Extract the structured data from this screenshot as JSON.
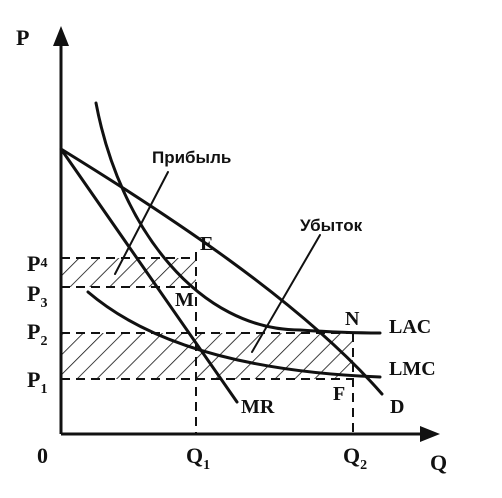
{
  "axes": {
    "y": "P",
    "x": "Q",
    "origin": "0"
  },
  "price_labels": {
    "p4": {
      "base": "P",
      "sub": "4"
    },
    "p3": {
      "base": "P",
      "sub": "3"
    },
    "p2": {
      "base": "P",
      "sub": "2"
    },
    "p1": {
      "base": "P",
      "sub": "1"
    }
  },
  "quantity_labels": {
    "q1": {
      "base": "Q",
      "sub": "1"
    },
    "q2": {
      "base": "Q",
      "sub": "2"
    }
  },
  "curve_labels": {
    "lac": "LAC",
    "lmc": "LMC",
    "mr": "MR",
    "d": "D"
  },
  "point_labels": {
    "e": "E",
    "m": "M",
    "n": "N",
    "f": "F"
  },
  "annotations": {
    "profit": "Прибыль",
    "loss": "Убыток"
  },
  "colors": {
    "ink": "#111111",
    "background": "#ffffff"
  }
}
